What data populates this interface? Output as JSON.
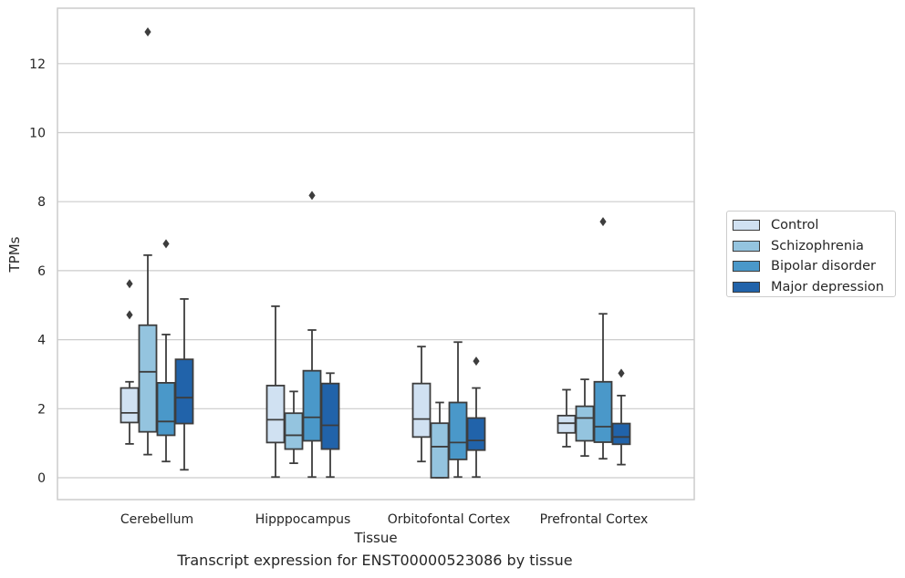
{
  "chart_data": {
    "type": "box",
    "title": "",
    "caption": "Transcript expression for ENST00000523086 by tissue",
    "xlabel": "Tissue",
    "ylabel": "TPMs",
    "ylim": [
      -0.6,
      13.6
    ],
    "yticks": [
      0,
      2,
      4,
      6,
      8,
      10,
      12
    ],
    "ytick_labels": [
      "0",
      "2",
      "4",
      "6",
      "8",
      "10",
      "12"
    ],
    "grid": true,
    "legend_position": "right",
    "categories": [
      "Cerebellum",
      "Hipppocampus",
      "Orbitofontal Cortex",
      "Prefrontal Cortex"
    ],
    "series": [
      {
        "name": "Control",
        "color": "#d0e1f2",
        "boxes": [
          {
            "q1": 1.6,
            "median": 1.88,
            "q3": 2.6,
            "whisker_low": 0.98,
            "whisker_high": 2.78,
            "outliers": [
              4.72,
              5.62
            ]
          },
          {
            "q1": 1.02,
            "median": 1.68,
            "q3": 2.67,
            "whisker_low": 0.02,
            "whisker_high": 4.97,
            "outliers": []
          },
          {
            "q1": 1.18,
            "median": 1.7,
            "q3": 2.73,
            "whisker_low": 0.47,
            "whisker_high": 3.8,
            "outliers": []
          },
          {
            "q1": 1.3,
            "median": 1.58,
            "q3": 1.8,
            "whisker_low": 0.9,
            "whisker_high": 2.55,
            "outliers": []
          }
        ]
      },
      {
        "name": "Schizophrenia",
        "color": "#94c4df",
        "boxes": [
          {
            "q1": 1.33,
            "median": 3.07,
            "q3": 4.42,
            "whisker_low": 0.67,
            "whisker_high": 6.45,
            "outliers": [
              12.92
            ]
          },
          {
            "q1": 0.83,
            "median": 1.23,
            "q3": 1.87,
            "whisker_low": 0.42,
            "whisker_high": 2.5,
            "outliers": []
          },
          {
            "q1": 0.0,
            "median": 0.9,
            "q3": 1.58,
            "whisker_low": 0.0,
            "whisker_high": 2.18,
            "outliers": []
          },
          {
            "q1": 1.07,
            "median": 1.73,
            "q3": 2.07,
            "whisker_low": 0.63,
            "whisker_high": 2.85,
            "outliers": []
          }
        ]
      },
      {
        "name": "Bipolar disorder",
        "color": "#4a98c9",
        "boxes": [
          {
            "q1": 1.23,
            "median": 1.63,
            "q3": 2.75,
            "whisker_low": 0.47,
            "whisker_high": 4.15,
            "outliers": [
              6.78
            ]
          },
          {
            "q1": 1.07,
            "median": 1.75,
            "q3": 3.1,
            "whisker_low": 0.02,
            "whisker_high": 4.28,
            "outliers": [
              8.18
            ]
          },
          {
            "q1": 0.53,
            "median": 1.02,
            "q3": 2.18,
            "whisker_low": 0.02,
            "whisker_high": 3.93,
            "outliers": []
          },
          {
            "q1": 1.03,
            "median": 1.48,
            "q3": 2.78,
            "whisker_low": 0.55,
            "whisker_high": 4.75,
            "outliers": [
              7.42
            ]
          }
        ]
      },
      {
        "name": "Major depression",
        "color": "#2163aa",
        "boxes": [
          {
            "q1": 1.57,
            "median": 2.32,
            "q3": 3.43,
            "whisker_low": 0.23,
            "whisker_high": 5.18,
            "outliers": []
          },
          {
            "q1": 0.83,
            "median": 1.52,
            "q3": 2.73,
            "whisker_low": 0.02,
            "whisker_high": 3.03,
            "outliers": []
          },
          {
            "q1": 0.8,
            "median": 1.08,
            "q3": 1.73,
            "whisker_low": 0.02,
            "whisker_high": 2.6,
            "outliers": [
              3.38
            ]
          },
          {
            "q1": 0.97,
            "median": 1.18,
            "q3": 1.57,
            "whisker_low": 0.38,
            "whisker_high": 2.38,
            "outliers": [
              3.03
            ]
          }
        ]
      }
    ]
  }
}
